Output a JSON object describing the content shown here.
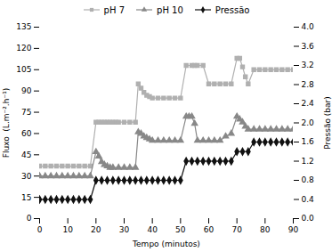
{
  "chart_data": {
    "type": "line",
    "xlabel": "Tempo (minutos)",
    "ylabel": "Fluxo  (L.m⁻².h⁻¹)",
    "y2label": "Pressão (bar)",
    "xlim": [
      0,
      90
    ],
    "xticks": [
      0,
      10,
      20,
      30,
      40,
      50,
      60,
      70,
      80,
      90
    ],
    "ylim": [
      0,
      135
    ],
    "yticks": [
      0,
      15,
      30,
      45,
      60,
      75,
      90,
      105,
      120,
      135
    ],
    "y2lim": [
      0,
      4
    ],
    "y2ticks": [
      {
        "value": 0,
        "label": "0.0"
      },
      0.4,
      0.8,
      1.2,
      1.6,
      {
        "value": 2,
        "label": "2.0"
      },
      2.4,
      2.8,
      3.2,
      3.6,
      {
        "value": 4,
        "label": "4.0"
      }
    ],
    "legend": "top",
    "series": [
      {
        "name": "pH 7",
        "color": "#b0b0b0",
        "marker": "square",
        "x": [
          0,
          2,
          4,
          6,
          8,
          10,
          12,
          14,
          16,
          18,
          20,
          21,
          22,
          23,
          24,
          25,
          26,
          27,
          28,
          30,
          32,
          34,
          35,
          36,
          37,
          38,
          39,
          40,
          42,
          44,
          46,
          48,
          50,
          52,
          54,
          55,
          56,
          58,
          60,
          62,
          64,
          66,
          68,
          70,
          71,
          72,
          73,
          74,
          76,
          78,
          80,
          82,
          84,
          86,
          88,
          90
        ],
        "values": [
          37,
          37,
          37,
          37,
          37,
          37,
          37,
          37,
          37,
          37,
          68,
          68,
          68,
          68,
          68,
          68,
          68,
          68,
          68,
          68,
          68,
          68,
          95,
          92,
          89,
          87,
          86,
          85,
          85,
          85,
          85,
          85,
          85,
          108,
          108,
          108,
          108,
          108,
          95,
          95,
          95,
          95,
          95,
          113,
          113,
          107,
          100,
          95,
          105,
          105,
          105,
          105,
          105,
          105,
          105,
          105
        ]
      },
      {
        "name": "pH 10",
        "color": "#888888",
        "marker": "triangle",
        "x": [
          0,
          2,
          4,
          6,
          8,
          10,
          12,
          14,
          16,
          18,
          20,
          21,
          22,
          23,
          24,
          25,
          26,
          28,
          30,
          32,
          34,
          35,
          36,
          37,
          38,
          39,
          40,
          42,
          44,
          46,
          48,
          50,
          52,
          53,
          54,
          55,
          56,
          58,
          60,
          62,
          64,
          66,
          68,
          70,
          71,
          72,
          73,
          74,
          76,
          78,
          80,
          82,
          84,
          86,
          88,
          90
        ],
        "values": [
          30,
          30,
          30,
          30,
          30,
          30,
          30,
          30,
          30,
          30,
          47,
          44,
          40,
          38,
          37,
          36,
          36,
          36,
          36,
          36,
          36,
          61,
          60,
          58,
          57,
          56,
          55,
          55,
          55,
          55,
          55,
          55,
          72,
          72,
          72,
          67,
          55,
          55,
          55,
          55,
          55,
          58,
          60,
          72,
          70,
          68,
          65,
          63,
          63,
          63,
          63,
          63,
          63,
          63,
          63,
          63
        ]
      },
      {
        "name": "Pressão",
        "color": "#111111",
        "marker": "diamond",
        "axis": "y2",
        "x": [
          0,
          2,
          4,
          6,
          8,
          10,
          12,
          14,
          16,
          18,
          20,
          22,
          24,
          26,
          28,
          30,
          32,
          34,
          36,
          38,
          40,
          42,
          44,
          46,
          48,
          50,
          52,
          54,
          56,
          58,
          60,
          62,
          64,
          66,
          68,
          70,
          72,
          74,
          76,
          78,
          80,
          82,
          84,
          86,
          88,
          90
        ],
        "values": [
          0.4,
          0.4,
          0.4,
          0.4,
          0.4,
          0.4,
          0.4,
          0.4,
          0.4,
          0.4,
          0.8,
          0.8,
          0.8,
          0.8,
          0.8,
          0.8,
          0.8,
          0.8,
          0.8,
          0.8,
          0.8,
          0.8,
          0.8,
          0.8,
          0.8,
          0.8,
          1.2,
          1.2,
          1.2,
          1.2,
          1.2,
          1.2,
          1.2,
          1.2,
          1.2,
          1.4,
          1.4,
          1.4,
          1.6,
          1.6,
          1.6,
          1.6,
          1.6,
          1.6,
          1.6,
          1.6
        ]
      }
    ]
  }
}
